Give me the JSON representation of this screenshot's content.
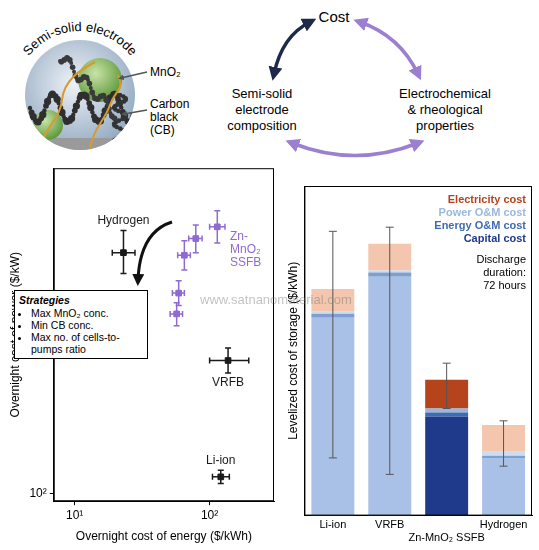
{
  "watermark": "www.satnanomaterial.com",
  "diagram": {
    "electrode": {
      "title": "Semi-solid electrode",
      "labels": [
        {
          "lines": [
            "MnO₂"
          ]
        },
        {
          "lines": [
            "Carbon",
            "black",
            "(CB)"
          ]
        }
      ]
    },
    "relations": {
      "nodes": [
        {
          "lines": [
            "Cost"
          ]
        },
        {
          "lines": [
            "Semi-solid",
            "electrode",
            "composition"
          ]
        },
        {
          "lines": [
            "Electrochemical",
            "& rheological",
            "properties"
          ]
        }
      ]
    }
  },
  "chart_data": [
    {
      "type": "scatter",
      "x_label": "Overnight cost of energy ($/kWh)",
      "y_label": "Overnight cost of power ($/kW)",
      "log": true,
      "grid": false,
      "xlim": [
        7,
        300
      ],
      "ylim": [
        90,
        9000
      ],
      "xticks": [
        {
          "value": 10,
          "label": "10¹"
        },
        {
          "value": 100,
          "label": "10²"
        }
      ],
      "yticks": [
        {
          "value": 100,
          "label": "10²"
        }
      ],
      "series": [
        {
          "name": "Hydrogen",
          "color": "#1a1a1a",
          "marker": "square",
          "x": [
            23
          ],
          "values": [
            2800
          ],
          "x_error": [
            [
              19,
              28
            ]
          ],
          "y_error": [
            [
              2100,
              3800
            ]
          ]
        },
        {
          "name": "VRFB",
          "color": "#1a1a1a",
          "marker": "square",
          "x": [
            137
          ],
          "values": [
            630
          ],
          "x_error": [
            [
              100,
              195
            ]
          ],
          "y_error": [
            [
              530,
              750
            ]
          ]
        },
        {
          "name": "Li-ion",
          "color": "#1a1a1a",
          "marker": "square",
          "x": [
            121
          ],
          "values": [
            126
          ],
          "x_error": [
            [
              105,
              140
            ]
          ],
          "y_error": [
            [
              115,
              138
            ]
          ]
        },
        {
          "name": "Zn-MnO₂ SSFB",
          "color": "#8e6bd1",
          "marker": "square",
          "x": [
            114,
            79,
            65,
            59,
            57
          ],
          "values": [
            4000,
            3400,
            2700,
            1600,
            1200
          ],
          "x_error": [
            [
              100,
              130
            ],
            [
              70,
              88
            ],
            [
              58,
              72
            ],
            [
              53,
              65
            ],
            [
              51,
              63
            ]
          ],
          "y_error": [
            [
              3200,
              5000
            ],
            [
              2800,
              4100
            ],
            [
              2200,
              3300
            ],
            [
              1350,
              1900
            ],
            [
              1020,
              1400
            ]
          ]
        }
      ],
      "annotations": {
        "title": "Strategies",
        "items": [
          "Max MnO₂ conc.",
          "Min CB conc.",
          "Max no. of cells-to-pumps ratio"
        ]
      }
    },
    {
      "type": "bar",
      "stacked": true,
      "y_label": "Levelized cost of storage ($/kWh)",
      "categories": [
        "Li-ion",
        "VRFB",
        "Zn-MnO₂ SSFB",
        "Hydrogen"
      ],
      "ylim": [
        0,
        0.8
      ],
      "tick_labels": "x",
      "grid": false,
      "legend": "upper right",
      "series": [
        {
          "name": "Capital cost",
          "color": "#1f3a8a",
          "colors": [
            "#a9c1e6",
            "#a9c1e6",
            "#1f3a8a",
            "#a9c1e6"
          ],
          "values": [
            0.48,
            0.58,
            0.24,
            0.14
          ]
        },
        {
          "name": "Energy O&M cost",
          "color": "#3f6cb0",
          "colors": [
            "#7f9fd0",
            "#7f9fd0",
            "#3f6cb0",
            "#7f9fd0"
          ],
          "values": [
            0.01,
            0.01,
            0.01,
            0.005
          ]
        },
        {
          "name": "Power O&M cost",
          "color": "#9ab8de",
          "colors": [
            "#cddcf1",
            "#cddcf1",
            "#9ab8de",
            "#cddcf1"
          ],
          "values": [
            0.005,
            0.005,
            0.01,
            0.01
          ]
        },
        {
          "name": "Electricity cost",
          "color": "#b5431b",
          "colors": [
            "#f3c6ad",
            "#f3c6ad",
            "#b5431b",
            "#f3c6ad"
          ],
          "values": [
            0.055,
            0.065,
            0.07,
            0.065
          ]
        }
      ],
      "error_bars": [
        [
          0.14,
          0.69
        ],
        [
          0.1,
          0.7
        ],
        [
          0.26,
          0.37
        ],
        [
          0.12,
          0.23
        ]
      ],
      "annotation": [
        "Discharge",
        "duration:",
        "72 hours"
      ]
    }
  ]
}
